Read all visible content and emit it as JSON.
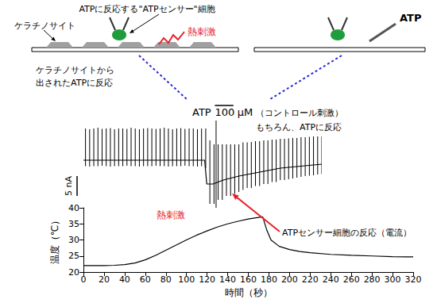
{
  "diagram": {
    "left_panel": {
      "cell_label": "ケラチノサイト",
      "sensor_label": "ATPに反応する\"ATPセンサー\"細胞",
      "stimulus": "熱刺激",
      "note": [
        "ケラチノサイトから",
        "出されたATPに反応"
      ]
    },
    "right_panel": {
      "stimulus": "ATP"
    }
  },
  "chart_data": [
    {
      "type": "line",
      "color": "#000000",
      "tick_labels": false,
      "xlim": [
        0,
        230
      ],
      "ylim": [
        -12,
        18
      ],
      "x": [
        0,
        117,
        119,
        125,
        135,
        150,
        170,
        190,
        210,
        230
      ],
      "values": [
        0,
        0,
        -6,
        -6,
        -5,
        -4,
        -3,
        -2,
        -1.5,
        -1
      ],
      "spikes": {
        "x": [
          2,
          6,
          10,
          14,
          18,
          22,
          26,
          30,
          34,
          38,
          42,
          46,
          50,
          54,
          58,
          62,
          66,
          70,
          74,
          78,
          82,
          86,
          90,
          94,
          98,
          102,
          106,
          110,
          114,
          118,
          122,
          126,
          128,
          130,
          134,
          138,
          142,
          146,
          150,
          154,
          158,
          162,
          166,
          170,
          174,
          178,
          182,
          186,
          190,
          194,
          198,
          202,
          206,
          210,
          214,
          218,
          222,
          226,
          230
        ],
        "high": [
          8,
          7.8,
          8,
          8.2,
          7.9,
          8,
          8.1,
          7.8,
          8,
          8,
          7.9,
          8.2,
          8,
          7.8,
          8,
          8.1,
          8,
          7.9,
          8,
          8.2,
          8,
          7.8,
          8,
          8.1,
          7.9,
          8,
          8,
          7.8,
          8,
          8,
          5,
          4,
          10,
          4,
          4,
          4,
          4,
          4,
          4,
          4.5,
          4.5,
          4.6,
          4.8,
          4.8,
          5,
          5,
          5.2,
          5.2,
          5.4,
          5.4,
          5.5,
          5.6,
          5.6,
          5.8,
          5.8,
          5.9,
          6,
          6,
          6
        ],
        "low": [
          -1.5,
          -1.6,
          -1.5,
          -1.5,
          -1.4,
          -1.5,
          -1.6,
          -1.5,
          -1.5,
          -1.5,
          -1.4,
          -1.5,
          -1.5,
          -1.6,
          -1.5,
          -1.5,
          -1.5,
          -1.4,
          -1.5,
          -1.5,
          -1.6,
          -1.5,
          -1.5,
          -1.5,
          -1.4,
          -1.5,
          -1.5,
          -1.6,
          -1.5,
          -2,
          -11,
          -11,
          -12,
          -10,
          -10,
          -9,
          -9,
          -8.5,
          -8,
          -7.5,
          -7,
          -7,
          -6.5,
          -6.5,
          -6,
          -6,
          -5.5,
          -5.5,
          -5,
          -5,
          -4.8,
          -4.6,
          -4.4,
          -4.2,
          -4,
          -3.9,
          -3.8,
          -3.6,
          -3.5
        ]
      },
      "scale_bar": {
        "value": 5,
        "label": "5 nA"
      },
      "annotations": {
        "stimulus_label": [
          "ATP",
          "100",
          "μM"
        ],
        "stimulus_note": "（コントロール刺激）",
        "note": "もちろん、ATPに反応",
        "response_label": "ATPセンサー細胞の反応（電流）"
      }
    },
    {
      "type": "line",
      "color": "#000000",
      "xlabel": "時間（秒）",
      "ylabel": "温度（℃）",
      "xlim": [
        0,
        320
      ],
      "xticks": [
        0,
        20,
        40,
        60,
        80,
        100,
        120,
        140,
        160,
        180,
        200,
        220,
        240,
        260,
        280,
        300,
        320
      ],
      "ylim": [
        20,
        40
      ],
      "yticks": [
        20,
        25,
        30,
        35,
        40
      ],
      "x": [
        0,
        10,
        20,
        30,
        40,
        50,
        60,
        70,
        80,
        90,
        100,
        110,
        120,
        130,
        140,
        150,
        160,
        170,
        174,
        178,
        182,
        190,
        200,
        210,
        220,
        240,
        260,
        280,
        300,
        320
      ],
      "values": [
        22,
        22,
        22,
        22.1,
        22.3,
        22.8,
        23.8,
        25.2,
        26.8,
        28.4,
        30,
        31.5,
        32.8,
        34,
        35,
        35.8,
        36.5,
        37,
        37.2,
        33,
        30,
        28,
        27,
        26.4,
        26,
        25.5,
        25.2,
        25,
        24.8,
        24.7
      ],
      "annotations": {
        "text": "熱刺激",
        "color": "#e8202a"
      }
    }
  ]
}
